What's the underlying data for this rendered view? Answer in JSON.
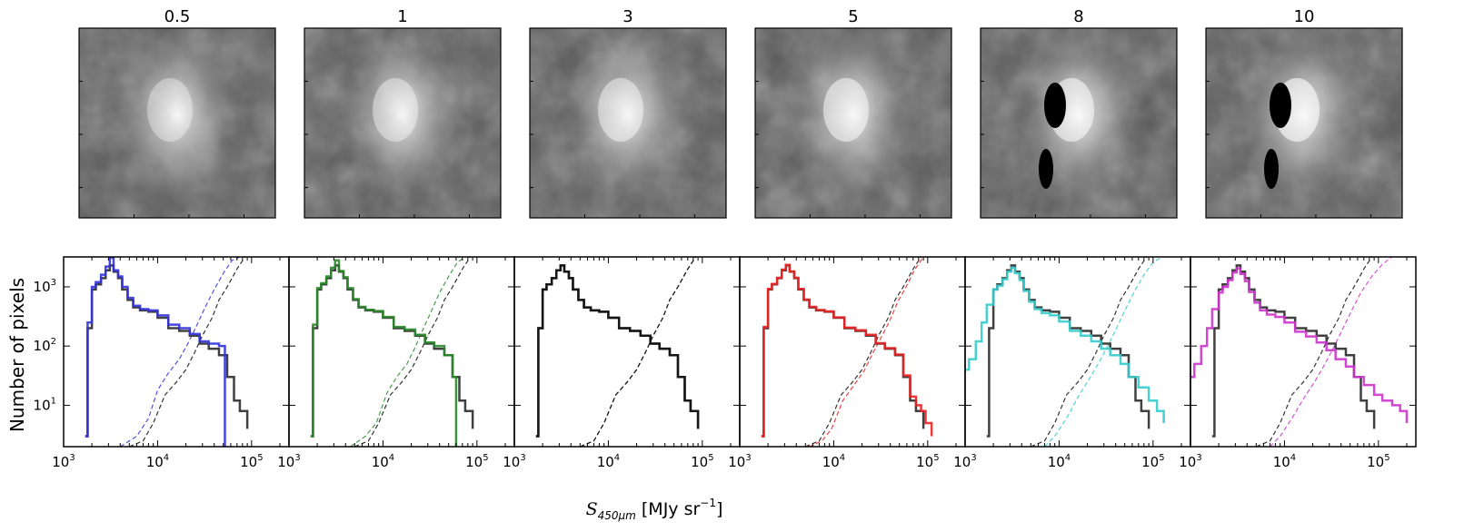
{
  "figure": {
    "panel_titles": [
      "0.5",
      "1",
      "3",
      "5",
      "8",
      "10"
    ],
    "ylabel": "Number of pixels",
    "xlabel_sym": "S",
    "xlabel_sub": "450μm",
    "xlabel_unit": " [MJy sr",
    "xlabel_exp": "−1",
    "xlabel_close": "]",
    "x_tick_base": "10",
    "y_tick_base": "10"
  },
  "chart_data": {
    "type": "line",
    "xscale": "log",
    "yscale": "log",
    "xlim": [
      1000,
      250000
    ],
    "ylim": [
      2,
      3200
    ],
    "xticks": [
      1000,
      10000,
      100000
    ],
    "x_tick_exps": [
      "3",
      "4",
      "5"
    ],
    "yticks": [
      10,
      100,
      1000
    ],
    "y_tick_exps": [
      "1",
      "2",
      "3"
    ],
    "reference_histogram": {
      "color": "#404040",
      "x": [
        1700,
        1800,
        2000,
        2200,
        2500,
        2800,
        3100,
        3400,
        3800,
        4200,
        4800,
        5500,
        6500,
        8000,
        10000,
        13000,
        17000,
        22000,
        28000,
        35000,
        45000,
        55000,
        65000,
        75000,
        90000
      ],
      "y": [
        3,
        200,
        900,
        1100,
        1400,
        1900,
        2300,
        1800,
        1400,
        900,
        600,
        450,
        400,
        380,
        300,
        200,
        180,
        150,
        110,
        90,
        70,
        30,
        12,
        8,
        4
      ]
    },
    "reference_cumulative": {
      "x": [
        5000,
        7000,
        9000,
        12000,
        16000,
        20000,
        25000,
        30000,
        38000,
        45000,
        55000,
        70000,
        85000
      ],
      "y": [
        2,
        2.5,
        5,
        15,
        25,
        40,
        80,
        150,
        300,
        600,
        1000,
        2000,
        3200
      ]
    },
    "panels": [
      {
        "title": "0.5",
        "color": "#3333dd",
        "histogram": {
          "x": [
            1700,
            1800,
            2000,
            2200,
            2500,
            2800,
            3100,
            3400,
            3800,
            4200,
            4800,
            5500,
            6500,
            8000,
            10000,
            13000,
            17000,
            22000,
            28000,
            35000,
            45000,
            52000
          ],
          "y": [
            3,
            250,
            1000,
            1200,
            1600,
            2200,
            3100,
            1900,
            1500,
            1000,
            650,
            480,
            420,
            400,
            330,
            230,
            200,
            160,
            120,
            110,
            100,
            2
          ]
        },
        "cumulative": {
          "x": [
            4000,
            6000,
            8000,
            10000,
            13000,
            17000,
            21000,
            26000,
            32000,
            40000,
            50000,
            62000,
            75000
          ],
          "y": [
            2,
            3,
            6,
            18,
            35,
            60,
            110,
            220,
            450,
            900,
            1700,
            2800,
            3200
          ]
        }
      },
      {
        "title": "1",
        "color": "#2a8a2a",
        "histogram": {
          "x": [
            1700,
            1800,
            2000,
            2200,
            2500,
            2800,
            3100,
            3400,
            3800,
            4200,
            4800,
            5500,
            6500,
            8000,
            10000,
            13000,
            17000,
            22000,
            28000,
            35000,
            45000,
            55000,
            60000
          ],
          "y": [
            3,
            230,
            950,
            1150,
            1500,
            2100,
            2800,
            1850,
            1450,
            950,
            620,
            460,
            410,
            390,
            310,
            210,
            190,
            155,
            115,
            100,
            70,
            30,
            2
          ]
        },
        "cumulative": {
          "x": [
            4500,
            6500,
            8500,
            11000,
            14000,
            18000,
            22000,
            27000,
            33000,
            40000,
            50000,
            62000,
            75000
          ],
          "y": [
            2,
            3,
            5,
            16,
            30,
            50,
            95,
            200,
            400,
            800,
            1500,
            2600,
            3200
          ]
        }
      },
      {
        "title": "3",
        "color": "#111111",
        "histogram": {
          "x": [
            1700,
            1800,
            2000,
            2200,
            2500,
            2800,
            3100,
            3400,
            3800,
            4200,
            4800,
            5500,
            6500,
            8000,
            10000,
            13000,
            17000,
            22000,
            28000,
            35000,
            45000,
            55000,
            65000,
            75000,
            90000
          ],
          "y": [
            3,
            200,
            900,
            1100,
            1400,
            1900,
            2300,
            1800,
            1400,
            900,
            600,
            450,
            400,
            380,
            300,
            200,
            180,
            150,
            110,
            90,
            70,
            30,
            12,
            8,
            4
          ]
        },
        "cumulative": {
          "x": [
            5000,
            7000,
            9000,
            12000,
            16000,
            20000,
            25000,
            30000,
            38000,
            45000,
            55000,
            70000,
            85000
          ],
          "y": [
            2,
            2.5,
            5,
            15,
            25,
            40,
            80,
            150,
            300,
            600,
            1000,
            2000,
            3200
          ]
        }
      },
      {
        "title": "5",
        "color": "#ee2222",
        "histogram": {
          "x": [
            1700,
            1800,
            2000,
            2200,
            2500,
            2800,
            3100,
            3400,
            3800,
            4200,
            4800,
            5500,
            6500,
            8000,
            10000,
            13000,
            17000,
            22000,
            28000,
            35000,
            45000,
            55000,
            65000,
            75000,
            85000,
            95000,
            110000
          ],
          "y": [
            3,
            210,
            920,
            1120,
            1420,
            1950,
            2350,
            1820,
            1420,
            920,
            610,
            460,
            405,
            385,
            305,
            205,
            185,
            155,
            112,
            92,
            72,
            32,
            14,
            10,
            8,
            5,
            3
          ]
        },
        "cumulative": {
          "x": [
            5500,
            7500,
            9500,
            12500,
            16500,
            21000,
            26000,
            32000,
            40000,
            48000,
            58000,
            72000,
            90000
          ],
          "y": [
            2,
            2.5,
            4,
            12,
            22,
            38,
            75,
            140,
            280,
            560,
            950,
            1900,
            3200
          ]
        }
      },
      {
        "title": "8",
        "color": "#33cccc",
        "histogram": {
          "x": [
            1000,
            1100,
            1300,
            1500,
            1700,
            2000,
            2200,
            2500,
            2800,
            3100,
            3400,
            3800,
            4200,
            4800,
            5500,
            6500,
            8000,
            10000,
            13000,
            17000,
            22000,
            28000,
            35000,
            45000,
            55000,
            70000,
            90000,
            110000,
            130000
          ],
          "y": [
            40,
            60,
            120,
            250,
            500,
            900,
            1050,
            1350,
            1800,
            2100,
            1700,
            1300,
            850,
            560,
            420,
            360,
            330,
            260,
            180,
            150,
            120,
            90,
            70,
            50,
            30,
            20,
            12,
            8,
            5
          ]
        },
        "cumulative": {
          "x": [
            7000,
            9000,
            12000,
            16000,
            21000,
            27000,
            34000,
            42000,
            52000,
            65000,
            80000,
            100000,
            125000
          ],
          "y": [
            2,
            3,
            6,
            14,
            28,
            55,
            110,
            220,
            450,
            900,
            1600,
            2600,
            3200
          ]
        }
      },
      {
        "title": "10",
        "color": "#cc33cc",
        "histogram": {
          "x": [
            1000,
            1100,
            1300,
            1500,
            1700,
            2000,
            2200,
            2500,
            2800,
            3100,
            3400,
            3800,
            4200,
            4800,
            5500,
            6500,
            8000,
            10000,
            13000,
            17000,
            22000,
            28000,
            35000,
            45000,
            55000,
            70000,
            90000,
            110000,
            140000,
            170000,
            200000
          ],
          "y": [
            30,
            50,
            100,
            200,
            420,
            800,
            1000,
            1300,
            1750,
            2050,
            1650,
            1250,
            820,
            540,
            400,
            340,
            310,
            250,
            175,
            145,
            115,
            85,
            60,
            45,
            30,
            22,
            15,
            12,
            10,
            8,
            5
          ]
        },
        "cumulative": {
          "x": [
            7000,
            9000,
            12000,
            16000,
            21000,
            27000,
            34000,
            42000,
            52000,
            65000,
            85000,
            110000,
            140000
          ],
          "y": [
            2,
            3,
            6,
            13,
            25,
            50,
            100,
            200,
            400,
            800,
            1500,
            2400,
            3200
          ]
        }
      }
    ]
  }
}
